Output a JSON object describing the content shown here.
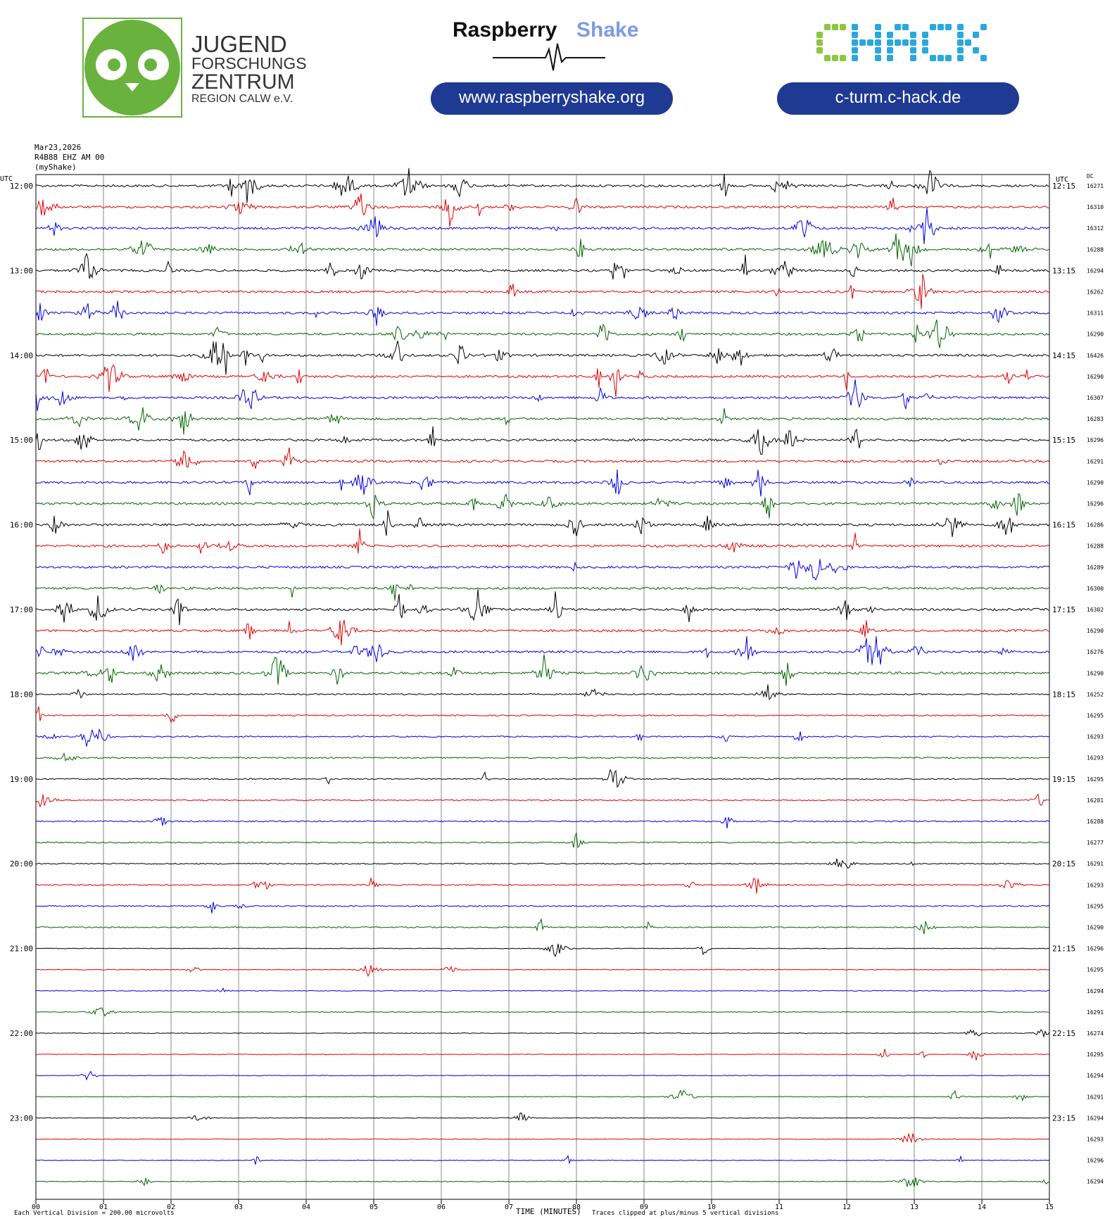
{
  "header": {
    "jfz": {
      "line1": "JUGEND",
      "line2": "FORSCHUNGS",
      "line3": "ZENTRUM",
      "line4": "REGION CALW e.V.",
      "color": "#6ab23e"
    },
    "rs": {
      "word1": "Raspberry",
      "word2": "Shake",
      "url": "www.raspberryshake.org",
      "pill_color": "#1f3a93",
      "shake_color": "#7f9be6"
    },
    "chack": {
      "logo": "CHACK",
      "url": "c-turm.c-hack.de",
      "green": "#8dc63f",
      "blue": "#29a8e0"
    }
  },
  "station": {
    "date": "Mar23,2026",
    "channel": "R4B88 EHZ AM 00",
    "source": "(myShake)"
  },
  "labels": {
    "utc_left": "UTC",
    "utc_right": "UTC",
    "dc": "DC",
    "footer_left": "Each Vertical Division =  200.00 microvolts",
    "footer_mid": "TIME (MINUTES)",
    "footer_right": "Traces clipped at plus/minus 5 vertical divisions"
  },
  "chart_data": {
    "type": "line",
    "x_ticks": [
      "00",
      "01",
      "02",
      "03",
      "04",
      "05",
      "06",
      "07",
      "08",
      "09",
      "10",
      "11",
      "12",
      "13",
      "14",
      "15"
    ],
    "xlim": [
      0,
      15
    ],
    "trace_colors": [
      "#000000",
      "#e00000",
      "#0000e0",
      "#006400"
    ],
    "hour_labels_left": [
      "12:00",
      "13:00",
      "14:00",
      "15:00",
      "16:00",
      "17:00",
      "18:00",
      "19:00",
      "20:00",
      "21:00",
      "22:00",
      "23:00"
    ],
    "hour_labels_right": [
      "12:15",
      "13:15",
      "14:15",
      "15:15",
      "16:15",
      "17:15",
      "18:15",
      "19:15",
      "20:15",
      "21:15",
      "22:15",
      "23:15"
    ],
    "dc_values": [
      16271,
      16310,
      16312,
      16288,
      16294,
      16262,
      16311,
      16290,
      16426,
      16290,
      16307,
      16283,
      16296,
      16291,
      16290,
      16296,
      16286,
      16288,
      16289,
      16300,
      16302,
      16290,
      16276,
      16290,
      16252,
      16295,
      16293,
      16293,
      16295,
      16281,
      16288,
      16277,
      16291,
      16293,
      16295,
      16290,
      16296,
      16295,
      16294,
      16291,
      16274,
      16295,
      16294,
      16291,
      16294,
      16293,
      16296,
      16294
    ]
  }
}
